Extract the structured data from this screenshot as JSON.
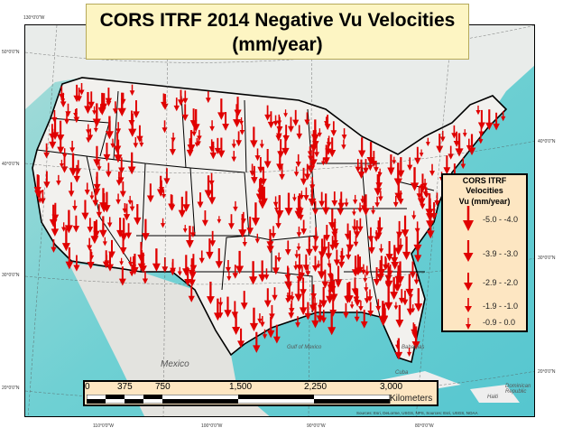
{
  "title": "CORS ITRF 2014 Negative Vu Velocities (mm/year)",
  "title_lines": [
    "CORS ITRF 2014 Negative Vu Velocities",
    "(mm/year)"
  ],
  "legend": {
    "title_lines": [
      "CORS ITRF Velocities",
      "Vu (mm/year)"
    ],
    "classes": [
      {
        "label": "-5.0 - -4.0",
        "range": [
          -5.0,
          -4.0
        ]
      },
      {
        "label": "-3.9 - -3.0",
        "range": [
          -3.9,
          -3.0
        ]
      },
      {
        "label": "-2.9 - -2.0",
        "range": [
          -2.9,
          -2.0
        ]
      },
      {
        "label": "-1.9 - -1.0",
        "range": [
          -1.9,
          -1.0
        ]
      },
      {
        "label": "-0.9 - 0.0",
        "range": [
          -0.9,
          0.0
        ]
      }
    ],
    "arrow_color": "#e00000"
  },
  "scale_bar": {
    "ticks": [
      "0",
      "375",
      "750",
      "1,500",
      "2,250",
      "3,000"
    ],
    "unit": "Kilometers"
  },
  "coordinates": {
    "top": [
      "130°0'0\"W"
    ],
    "left": [
      "50°0'0\"N",
      "40°0'0\"N",
      "30°0'0\"N",
      "20°0'0\"N"
    ],
    "right": [
      "40°0'0\"N",
      "30°0'0\"N",
      "20°0'0\"N"
    ],
    "bottom": [
      "110°0'0\"W",
      "100°0'0\"W",
      "90°0'0\"W",
      "80°0'0\"W"
    ]
  },
  "places": [
    "Mexico",
    "Gulf of Mexico",
    "Cuba",
    "Bahamas",
    "Haiti",
    "Dominican Republic"
  ],
  "sources": "Sources: Esri, DeLorme, USGS, NPS, Sources: Esri, USGS, NOAA",
  "colors": {
    "ocean": "#6ccfd2",
    "land": "#ecebe8",
    "arrow": "#e00000",
    "legend_bg": "#fde6c2",
    "title_bg": "#fdf5c3"
  }
}
